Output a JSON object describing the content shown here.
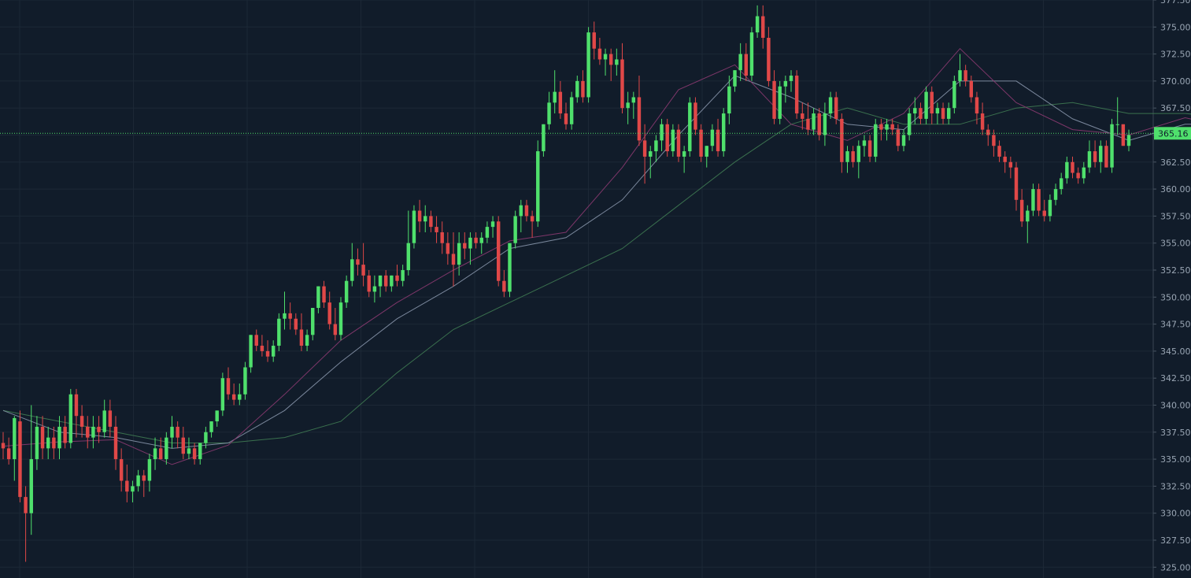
{
  "colors": {
    "background": "#111c2a",
    "grid": "#1c2836",
    "up": "#4fe06c",
    "down": "#e04848",
    "sma_fast": "#8a3a70",
    "sma_mid": "#8693a8",
    "sma_slow": "#3f7a52",
    "current_price_line": "#4fe06c",
    "axis_text": "#9aa6b4"
  },
  "chart_data": {
    "type": "candlestick",
    "y_axis_position": "right",
    "ylim": [
      324,
      377.5
    ],
    "yticks": [
      "377.50",
      "375.00",
      "372.50",
      "370.00",
      "367.50",
      "365.00",
      "362.50",
      "360.00",
      "357.50",
      "355.00",
      "352.50",
      "350.00",
      "347.50",
      "345.00",
      "342.50",
      "340.00",
      "337.50",
      "335.00",
      "332.50",
      "330.00",
      "327.50",
      "325.00"
    ],
    "grid": true,
    "current_price": 365.16,
    "current_price_label": "365.16",
    "candles": [
      [
        336.5,
        337.5,
        335,
        336
      ],
      [
        336,
        337,
        334.5,
        335
      ],
      [
        335,
        339,
        333,
        338.8
      ],
      [
        338.5,
        339.5,
        331,
        331.5
      ],
      [
        331.5,
        332.5,
        325.5,
        330
      ],
      [
        330,
        340,
        328,
        335
      ],
      [
        335,
        339,
        334,
        338
      ],
      [
        338,
        339,
        335,
        336
      ],
      [
        336,
        338,
        335,
        337
      ],
      [
        337,
        338,
        335,
        336
      ],
      [
        336,
        339,
        335,
        338
      ],
      [
        338,
        339,
        336,
        336.5
      ],
      [
        336.5,
        341.5,
        336,
        341
      ],
      [
        341,
        341.5,
        337,
        339
      ],
      [
        339,
        340,
        337,
        338
      ],
      [
        338,
        339,
        336,
        337
      ],
      [
        337,
        339,
        336,
        338
      ],
      [
        338,
        339,
        336.5,
        337.5
      ],
      [
        337.5,
        340.5,
        337,
        339.5
      ],
      [
        339.5,
        340.5,
        337,
        338
      ],
      [
        338,
        339,
        334,
        335
      ],
      [
        335,
        336,
        332,
        333
      ],
      [
        333,
        334.5,
        331,
        332
      ],
      [
        332,
        333,
        331,
        332.5
      ],
      [
        332.5,
        334,
        332,
        333.5
      ],
      [
        333.5,
        334,
        331.5,
        333
      ],
      [
        333,
        335.5,
        332,
        335
      ],
      [
        335,
        337,
        334,
        336
      ],
      [
        336,
        337,
        335,
        335
      ],
      [
        335,
        337.5,
        334.5,
        337
      ],
      [
        337,
        339,
        336,
        338
      ],
      [
        338,
        338.5,
        336,
        337
      ],
      [
        337,
        338,
        335,
        335.5
      ],
      [
        335.5,
        337,
        335,
        336
      ],
      [
        336,
        336.5,
        334.5,
        335
      ],
      [
        335,
        336.5,
        334.5,
        336.5
      ],
      [
        336.5,
        338,
        336,
        337.5
      ],
      [
        337.5,
        338.5,
        337,
        338.5
      ],
      [
        338.5,
        339.5,
        338,
        339.5
      ],
      [
        339.5,
        343,
        339,
        342.5
      ],
      [
        342.5,
        343.5,
        340.5,
        341
      ],
      [
        341,
        342,
        340,
        340.5
      ],
      [
        340.5,
        342,
        340,
        341
      ],
      [
        341,
        344,
        340.5,
        343.5
      ],
      [
        343.5,
        346.5,
        343,
        346.5
      ],
      [
        346.5,
        347,
        345,
        345.5
      ],
      [
        345.5,
        346.5,
        344.5,
        345
      ],
      [
        345,
        346,
        344,
        344.5
      ],
      [
        344.5,
        346,
        344,
        345.5
      ],
      [
        345.5,
        348.5,
        345,
        348
      ],
      [
        348,
        350.5,
        347,
        348.5
      ],
      [
        348.5,
        349.5,
        347,
        348
      ],
      [
        348,
        348.5,
        346.5,
        347
      ],
      [
        347,
        348.5,
        345,
        345.5
      ],
      [
        345.5,
        347,
        345,
        346.5
      ],
      [
        346.5,
        349,
        346,
        349
      ],
      [
        349,
        351,
        348.5,
        351
      ],
      [
        351,
        351.5,
        349,
        349.5
      ],
      [
        349.5,
        350.5,
        347,
        347.5
      ],
      [
        347.5,
        349,
        346,
        346.5
      ],
      [
        346.5,
        350,
        346,
        349.5
      ],
      [
        349.5,
        352,
        349,
        351.5
      ],
      [
        351.5,
        355,
        351,
        353.5
      ],
      [
        353.5,
        354.5,
        352,
        353
      ],
      [
        353,
        355,
        351,
        352
      ],
      [
        352,
        352.5,
        350,
        350.5
      ],
      [
        350.5,
        352,
        349.5,
        351
      ],
      [
        351,
        352,
        350,
        352
      ],
      [
        352,
        352.5,
        350.5,
        351
      ],
      [
        351,
        352,
        350.5,
        352
      ],
      [
        352,
        353,
        351,
        351.5
      ],
      [
        351.5,
        353,
        351,
        352.5
      ],
      [
        352.5,
        358,
        352,
        355
      ],
      [
        355,
        358.5,
        354.5,
        358
      ],
      [
        358,
        359,
        356,
        357
      ],
      [
        357,
        358.5,
        356,
        357.5
      ],
      [
        357.5,
        358,
        356,
        356.5
      ],
      [
        356.5,
        357.5,
        355,
        356
      ],
      [
        356,
        357,
        354,
        355
      ],
      [
        355,
        356,
        353,
        354
      ],
      [
        354,
        356,
        351,
        353
      ],
      [
        353,
        356,
        352,
        355
      ],
      [
        355,
        356,
        353.5,
        354.5
      ],
      [
        354.5,
        356,
        353,
        355.5
      ],
      [
        355.5,
        356,
        354.5,
        355
      ],
      [
        355,
        356,
        354,
        355.5
      ],
      [
        355.5,
        357,
        355,
        356.5
      ],
      [
        356.5,
        357.5,
        355.5,
        357
      ],
      [
        357,
        357.5,
        351,
        351.5
      ],
      [
        351.5,
        352.5,
        350,
        350.5
      ],
      [
        350.5,
        355,
        350,
        355
      ],
      [
        355,
        358,
        354.5,
        357.5
      ],
      [
        357.5,
        359,
        356,
        358.5
      ],
      [
        358.5,
        359,
        357,
        357.5
      ],
      [
        357.5,
        358,
        355.5,
        357
      ],
      [
        357,
        364.5,
        356.5,
        363.5
      ],
      [
        363.5,
        366,
        363,
        366
      ],
      [
        366,
        369,
        365.5,
        368
      ],
      [
        368,
        371,
        367,
        369
      ],
      [
        369,
        370,
        366.5,
        367
      ],
      [
        367,
        368,
        365.5,
        366
      ],
      [
        366,
        369,
        365.5,
        368.5
      ],
      [
        368.5,
        370.5,
        368,
        370
      ],
      [
        370,
        371,
        368,
        368.5
      ],
      [
        368.5,
        375,
        368,
        374.5
      ],
      [
        374.5,
        375.5,
        372,
        373
      ],
      [
        373,
        374,
        371.5,
        372
      ],
      [
        372,
        373,
        370.5,
        372.5
      ],
      [
        372.5,
        373,
        370,
        371.5
      ],
      [
        371.5,
        373,
        370.5,
        372
      ],
      [
        372,
        373.5,
        367,
        367.5
      ],
      [
        367.5,
        369,
        366,
        368
      ],
      [
        368,
        369,
        366.5,
        368.5
      ],
      [
        368.5,
        370.5,
        364,
        364.5
      ],
      [
        364.5,
        366,
        360.5,
        363
      ],
      [
        363,
        364,
        361,
        363.5
      ],
      [
        363.5,
        365,
        362.5,
        364.5
      ],
      [
        364.5,
        366.5,
        363.5,
        366
      ],
      [
        366,
        366.5,
        363,
        363.5
      ],
      [
        363.5,
        366,
        363,
        365.5
      ],
      [
        365.5,
        366,
        362.5,
        363
      ],
      [
        363,
        364,
        361.5,
        363.5
      ],
      [
        363.5,
        368.5,
        363,
        368
      ],
      [
        368,
        368.5,
        365,
        365.5
      ],
      [
        365.5,
        366,
        362.5,
        363
      ],
      [
        363,
        364,
        362,
        364
      ],
      [
        364,
        366,
        363.5,
        365.5
      ],
      [
        365.5,
        366.5,
        363,
        363.5
      ],
      [
        363.5,
        367.5,
        363,
        367
      ],
      [
        367,
        370.5,
        366,
        369.5
      ],
      [
        369.5,
        371,
        369,
        371
      ],
      [
        371,
        373.5,
        370,
        372.5
      ],
      [
        372.5,
        373.5,
        370,
        370.5
      ],
      [
        370.5,
        375,
        370,
        374.5
      ],
      [
        374.5,
        377,
        374,
        376
      ],
      [
        376,
        377,
        373,
        374
      ],
      [
        374,
        375,
        369.5,
        370
      ],
      [
        370,
        371,
        366,
        366.5
      ],
      [
        366.5,
        370,
        366,
        369.5
      ],
      [
        369.5,
        370.5,
        368,
        370
      ],
      [
        370,
        371,
        369,
        370.5
      ],
      [
        370.5,
        371,
        366.5,
        367
      ],
      [
        367,
        368,
        365.5,
        366.5
      ],
      [
        366.5,
        368,
        365,
        365.5
      ],
      [
        365.5,
        367.5,
        365,
        367
      ],
      [
        367,
        367.5,
        364.5,
        365
      ],
      [
        365,
        368,
        364,
        367
      ],
      [
        367,
        369,
        366.5,
        368.5
      ],
      [
        368.5,
        369,
        366,
        366.5
      ],
      [
        366.5,
        367,
        361.5,
        362.5
      ],
      [
        362.5,
        364,
        361.5,
        363.5
      ],
      [
        363.5,
        364,
        362,
        362.5
      ],
      [
        362.5,
        364.5,
        361,
        364
      ],
      [
        364,
        365,
        363,
        364.5
      ],
      [
        364.5,
        365,
        362.5,
        363
      ],
      [
        363,
        366.5,
        362.5,
        366
      ],
      [
        366,
        366.5,
        364.5,
        365.5
      ],
      [
        365.5,
        366.5,
        364.5,
        366
      ],
      [
        366,
        366.5,
        365,
        365.5
      ],
      [
        365.5,
        366,
        363.5,
        364
      ],
      [
        364,
        365.5,
        363.5,
        365
      ],
      [
        365,
        367.5,
        364.5,
        367
      ],
      [
        367,
        368.5,
        366,
        367.5
      ],
      [
        367.5,
        368,
        366,
        366.5
      ],
      [
        366.5,
        369.5,
        366,
        369
      ],
      [
        369,
        369.5,
        366,
        367
      ],
      [
        367,
        368,
        366,
        367.5
      ],
      [
        367.5,
        368,
        366,
        366.5
      ],
      [
        366.5,
        368,
        366,
        367.5
      ],
      [
        367.5,
        370.5,
        367,
        370
      ],
      [
        370,
        372.5,
        369.5,
        371
      ],
      [
        371,
        371.5,
        369.5,
        370
      ],
      [
        370,
        370.5,
        368,
        368.5
      ],
      [
        368.5,
        369,
        366,
        367
      ],
      [
        367,
        368,
        365,
        365.5
      ],
      [
        365.5,
        366,
        364,
        365
      ],
      [
        365,
        365.5,
        363,
        364
      ],
      [
        364,
        364.5,
        362.5,
        363
      ],
      [
        363,
        363.5,
        361.5,
        362.5
      ],
      [
        362.5,
        363,
        361,
        362
      ],
      [
        362,
        362.5,
        358,
        359
      ],
      [
        359,
        360,
        356.5,
        357
      ],
      [
        357,
        358.5,
        355,
        358
      ],
      [
        358,
        360.5,
        357.5,
        360
      ],
      [
        360,
        360.5,
        357.5,
        358
      ],
      [
        358,
        359,
        357,
        357.5
      ],
      [
        357.5,
        359.5,
        357,
        359
      ],
      [
        359,
        360.5,
        358.5,
        360
      ],
      [
        360,
        361.5,
        359.5,
        361
      ],
      [
        361,
        363,
        360.5,
        362.5
      ],
      [
        362.5,
        363,
        361,
        361.5
      ],
      [
        361.5,
        362,
        360.5,
        361
      ],
      [
        361,
        362.5,
        360.5,
        362
      ],
      [
        362,
        364.5,
        361.5,
        363.5
      ],
      [
        363.5,
        364.5,
        362,
        362.5
      ],
      [
        362.5,
        364.5,
        361.5,
        364
      ],
      [
        364,
        364.5,
        362,
        362
      ],
      [
        362,
        366.5,
        361.5,
        366
      ],
      [
        366,
        368.5,
        365,
        366
      ],
      [
        366,
        366,
        364,
        364
      ],
      [
        364,
        365.5,
        363.5,
        365
      ]
    ],
    "sma_fast": [
      [
        0,
        336.2
      ],
      [
        10,
        336.6
      ],
      [
        20,
        336.8
      ],
      [
        30,
        334.5
      ],
      [
        40,
        336.3
      ],
      [
        50,
        341
      ],
      [
        60,
        346
      ],
      [
        70,
        349.5
      ],
      [
        80,
        352.5
      ],
      [
        90,
        355.2
      ],
      [
        100,
        356
      ],
      [
        110,
        362
      ],
      [
        120,
        369.2
      ],
      [
        130,
        371.5
      ],
      [
        140,
        366
      ],
      [
        150,
        364.5
      ],
      [
        160,
        367
      ],
      [
        170,
        373
      ],
      [
        180,
        368
      ],
      [
        190,
        365.5
      ],
      [
        200,
        365
      ],
      [
        210,
        366.6
      ],
      [
        220,
        365.5
      ],
      [
        230,
        359.5
      ],
      [
        240,
        361.5
      ],
      [
        249,
        363.8
      ]
    ],
    "sma_mid": [
      [
        0,
        339.5
      ],
      [
        10,
        337.5
      ],
      [
        20,
        337
      ],
      [
        30,
        336
      ],
      [
        40,
        336.5
      ],
      [
        50,
        339.5
      ],
      [
        60,
        344
      ],
      [
        70,
        348
      ],
      [
        80,
        351
      ],
      [
        90,
        354.5
      ],
      [
        100,
        355.5
      ],
      [
        110,
        359
      ],
      [
        120,
        365
      ],
      [
        130,
        370.5
      ],
      [
        140,
        368.5
      ],
      [
        150,
        366
      ],
      [
        160,
        365.5
      ],
      [
        170,
        370
      ],
      [
        180,
        370
      ],
      [
        190,
        366.5
      ],
      [
        200,
        364.5
      ],
      [
        210,
        366
      ],
      [
        220,
        366
      ],
      [
        230,
        361.5
      ],
      [
        240,
        361
      ],
      [
        249,
        362.5
      ]
    ],
    "sma_slow": [
      [
        0,
        339.5
      ],
      [
        10,
        338.5
      ],
      [
        20,
        337.5
      ],
      [
        30,
        336.5
      ],
      [
        40,
        336.5
      ],
      [
        50,
        337
      ],
      [
        60,
        338.5
      ],
      [
        70,
        343
      ],
      [
        80,
        347
      ],
      [
        90,
        349.5
      ],
      [
        100,
        352
      ],
      [
        110,
        354.5
      ],
      [
        120,
        358.5
      ],
      [
        130,
        362.5
      ],
      [
        140,
        366
      ],
      [
        150,
        367.5
      ],
      [
        160,
        366
      ],
      [
        170,
        366
      ],
      [
        180,
        367.5
      ],
      [
        190,
        368
      ],
      [
        200,
        367
      ],
      [
        210,
        367
      ],
      [
        220,
        366.5
      ],
      [
        230,
        365.5
      ],
      [
        240,
        363
      ],
      [
        249,
        362.2
      ]
    ]
  }
}
